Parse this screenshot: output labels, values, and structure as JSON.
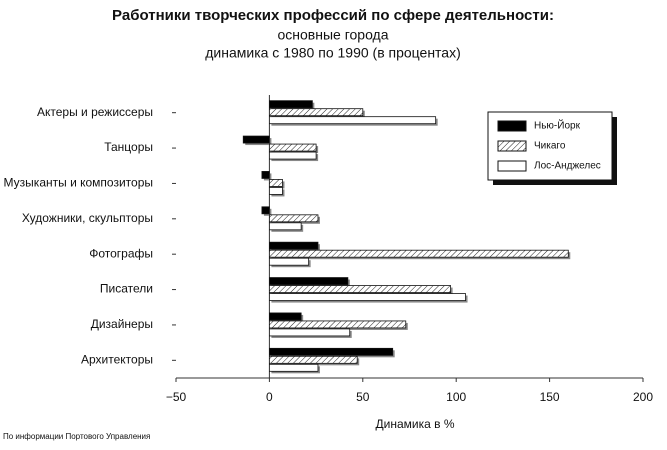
{
  "chart_data": {
    "type": "hbar",
    "title": "Работники творческих профессий по сфере деятельности:",
    "subtitle": [
      "основные города",
      "динамика с 1980 по 1990 (в процентах)"
    ],
    "xlabel": "Динамика в %",
    "source": "По информации Портового Управления",
    "categories": [
      "Актеры и режиссеры",
      "Танцоры",
      "Музыканты и композиторы",
      "Художники, скульпторы",
      "Фотографы",
      "Писатели",
      "Дизайнеры",
      "Архитекторы"
    ],
    "series": [
      {
        "name": "Нью-Йорк",
        "color": "#000000",
        "values": [
          23,
          -14,
          -4,
          -4,
          26,
          42,
          17,
          66
        ]
      },
      {
        "name": "Чикаго",
        "color": "#ffffff",
        "pattern": "hatch",
        "values": [
          50,
          25,
          7,
          26,
          160,
          97,
          73,
          47
        ]
      },
      {
        "name": "Лос-Анджелес",
        "color": "#ffffff",
        "values": [
          89,
          25,
          7,
          17,
          21,
          105,
          43,
          26
        ]
      }
    ],
    "xlim": [
      -50,
      200
    ],
    "xticks": [
      {
        "value": -50,
        "label": "−50"
      },
      0,
      50,
      100,
      150,
      200
    ],
    "legend": "upper right",
    "shadow": true
  }
}
